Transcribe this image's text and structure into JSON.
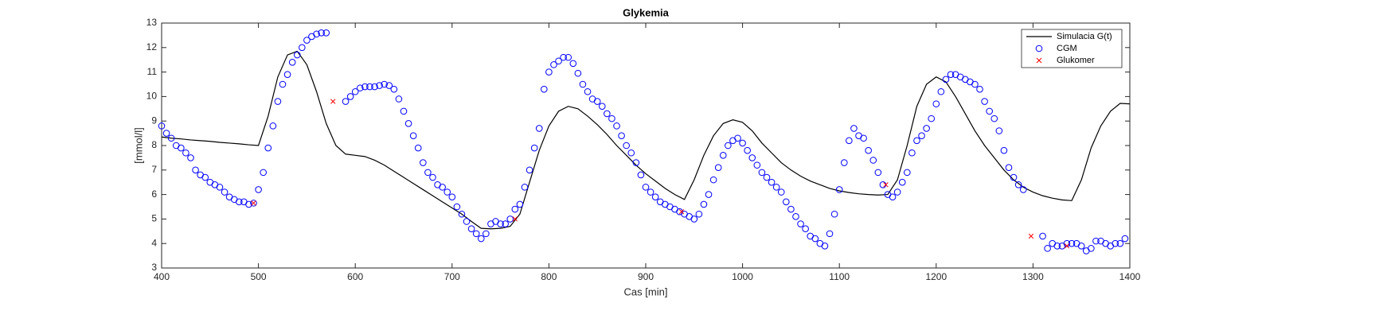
{
  "chart_data": {
    "type": "scatter",
    "title": "Glykemia",
    "x_label": "Cas [min]",
    "y_label": "[mmol/l]",
    "xlim": [
      400,
      1400
    ],
    "xticks": [
      400,
      500,
      600,
      700,
      800,
      900,
      1000,
      1100,
      1200,
      1300,
      1400
    ],
    "ylim": [
      3,
      13
    ],
    "yticks": [
      3,
      4,
      5,
      6,
      7,
      8,
      9,
      10,
      11,
      12,
      13
    ],
    "legend": "top-right",
    "series": [
      {
        "name": "Simulacia G(t)",
        "kind": "line",
        "color": "#000000",
        "x": [
          400,
          410,
          420,
          430,
          440,
          450,
          460,
          470,
          480,
          490,
          500,
          510,
          520,
          530,
          540,
          550,
          560,
          570,
          580,
          590,
          600,
          610,
          620,
          630,
          640,
          650,
          660,
          670,
          680,
          690,
          700,
          710,
          720,
          730,
          740,
          750,
          760,
          770,
          780,
          790,
          800,
          810,
          820,
          830,
          840,
          850,
          860,
          870,
          880,
          890,
          900,
          910,
          920,
          930,
          940,
          950,
          960,
          970,
          980,
          990,
          1000,
          1010,
          1020,
          1030,
          1040,
          1050,
          1060,
          1070,
          1080,
          1090,
          1100,
          1110,
          1120,
          1130,
          1140,
          1150,
          1160,
          1170,
          1180,
          1190,
          1200,
          1210,
          1220,
          1230,
          1240,
          1250,
          1260,
          1270,
          1280,
          1290,
          1300,
          1310,
          1320,
          1330,
          1340,
          1350,
          1360,
          1370,
          1380,
          1390,
          1400
        ],
        "values": [
          8.35,
          8.3,
          8.27,
          8.23,
          8.2,
          8.17,
          8.13,
          8.1,
          8.07,
          8.03,
          8.0,
          9.2,
          10.8,
          11.7,
          11.85,
          11.3,
          10.2,
          8.9,
          8.0,
          7.65,
          7.6,
          7.55,
          7.4,
          7.2,
          6.95,
          6.7,
          6.45,
          6.2,
          5.95,
          5.7,
          5.45,
          5.2,
          4.9,
          4.62,
          4.6,
          4.62,
          4.7,
          5.2,
          6.5,
          7.8,
          8.8,
          9.4,
          9.6,
          9.5,
          9.2,
          8.85,
          8.45,
          8.0,
          7.6,
          7.2,
          6.85,
          6.55,
          6.25,
          6.0,
          5.8,
          6.6,
          7.6,
          8.4,
          8.9,
          9.05,
          8.95,
          8.6,
          8.1,
          7.7,
          7.3,
          7.0,
          6.75,
          6.55,
          6.4,
          6.25,
          6.15,
          6.08,
          6.03,
          6.0,
          5.98,
          6.0,
          6.6,
          8.0,
          9.6,
          10.5,
          10.8,
          10.6,
          10.0,
          9.3,
          8.6,
          8.0,
          7.5,
          7.0,
          6.6,
          6.3,
          6.1,
          5.95,
          5.85,
          5.78,
          5.75,
          6.6,
          7.9,
          8.8,
          9.4,
          9.72,
          9.7
        ]
      },
      {
        "name": "CGM",
        "kind": "circle",
        "color": "#0000ff",
        "x": [
          400,
          405,
          410,
          415,
          420,
          425,
          430,
          435,
          440,
          445,
          450,
          455,
          460,
          465,
          470,
          475,
          480,
          485,
          490,
          495,
          500,
          505,
          510,
          515,
          520,
          525,
          530,
          535,
          540,
          545,
          550,
          555,
          560,
          565,
          570,
          590,
          595,
          600,
          605,
          610,
          615,
          620,
          625,
          630,
          635,
          640,
          645,
          650,
          655,
          660,
          665,
          670,
          675,
          680,
          685,
          690,
          695,
          700,
          705,
          710,
          715,
          720,
          725,
          730,
          735,
          740,
          745,
          750,
          755,
          760,
          765,
          770,
          775,
          780,
          785,
          790,
          795,
          800,
          805,
          810,
          815,
          820,
          825,
          830,
          835,
          840,
          845,
          850,
          855,
          860,
          865,
          870,
          875,
          880,
          885,
          890,
          895,
          900,
          905,
          910,
          915,
          920,
          925,
          930,
          935,
          940,
          945,
          950,
          955,
          960,
          965,
          970,
          975,
          980,
          985,
          990,
          995,
          1000,
          1005,
          1010,
          1015,
          1020,
          1025,
          1030,
          1035,
          1040,
          1045,
          1050,
          1055,
          1060,
          1065,
          1070,
          1075,
          1080,
          1085,
          1090,
          1095,
          1100,
          1105,
          1110,
          1115,
          1120,
          1125,
          1130,
          1135,
          1140,
          1145,
          1150,
          1155,
          1160,
          1165,
          1170,
          1175,
          1180,
          1185,
          1190,
          1195,
          1200,
          1205,
          1210,
          1215,
          1220,
          1225,
          1230,
          1235,
          1240,
          1245,
          1250,
          1255,
          1260,
          1265,
          1270,
          1275,
          1280,
          1285,
          1290,
          1310,
          1315,
          1320,
          1325,
          1330,
          1335,
          1340,
          1345,
          1350,
          1355,
          1360,
          1365,
          1370,
          1375,
          1380,
          1385,
          1390,
          1395
        ],
        "values": [
          8.8,
          8.5,
          8.3,
          8.0,
          7.9,
          7.7,
          7.5,
          7.0,
          6.8,
          6.7,
          6.5,
          6.4,
          6.3,
          6.1,
          5.9,
          5.8,
          5.7,
          5.7,
          5.6,
          5.65,
          6.2,
          6.9,
          7.9,
          8.8,
          9.8,
          10.5,
          10.9,
          11.4,
          11.7,
          12.0,
          12.3,
          12.45,
          12.55,
          12.6,
          12.6,
          9.8,
          10.0,
          10.2,
          10.35,
          10.4,
          10.4,
          10.4,
          10.45,
          10.5,
          10.45,
          10.3,
          9.9,
          9.4,
          8.9,
          8.4,
          7.9,
          7.3,
          6.9,
          6.7,
          6.4,
          6.3,
          6.1,
          5.9,
          5.5,
          5.2,
          4.9,
          4.6,
          4.4,
          4.2,
          4.4,
          4.8,
          4.9,
          4.8,
          4.8,
          5.0,
          5.4,
          5.6,
          6.3,
          7.0,
          7.9,
          8.7,
          10.3,
          11.0,
          11.3,
          11.45,
          11.6,
          11.6,
          11.35,
          10.95,
          10.5,
          10.2,
          9.9,
          9.8,
          9.6,
          9.3,
          9.1,
          8.8,
          8.4,
          8.0,
          7.7,
          7.3,
          6.8,
          6.3,
          6.1,
          5.9,
          5.7,
          5.6,
          5.5,
          5.4,
          5.3,
          5.2,
          5.1,
          5.0,
          5.2,
          5.6,
          6.0,
          6.6,
          7.1,
          7.6,
          8.0,
          8.2,
          8.3,
          8.1,
          7.8,
          7.5,
          7.2,
          6.9,
          6.7,
          6.5,
          6.3,
          6.1,
          5.7,
          5.4,
          5.1,
          4.8,
          4.6,
          4.3,
          4.2,
          4.0,
          3.9,
          4.4,
          5.2,
          6.2,
          7.3,
          8.2,
          8.7,
          8.4,
          8.3,
          7.8,
          7.4,
          6.9,
          6.4,
          6.0,
          5.9,
          6.1,
          6.5,
          6.9,
          7.7,
          8.2,
          8.4,
          8.7,
          9.1,
          9.7,
          10.2,
          10.7,
          10.9,
          10.9,
          10.8,
          10.7,
          10.6,
          10.5,
          10.3,
          9.8,
          9.4,
          9.1,
          8.6,
          7.8,
          7.1,
          6.7,
          6.4,
          6.2,
          4.3,
          3.8,
          4.0,
          3.9,
          3.9,
          4.0,
          4.0,
          4.0,
          3.9,
          3.7,
          3.8,
          4.1,
          4.1,
          4.0,
          3.9,
          4.0,
          4.0,
          4.2
        ]
      },
      {
        "name": "Glukomer",
        "kind": "cross",
        "color": "#ff0000",
        "x": [
          495,
          577,
          765,
          937,
          1148,
          1298,
          1335
        ],
        "values": [
          5.65,
          9.8,
          5.0,
          5.3,
          6.4,
          4.3,
          3.9
        ]
      }
    ]
  }
}
